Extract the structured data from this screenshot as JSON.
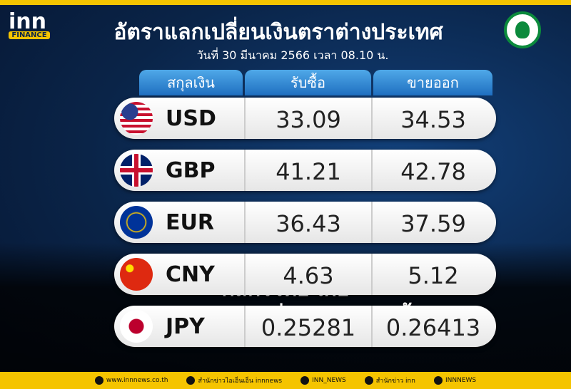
{
  "logo": {
    "brand": "inn",
    "sub": "FINANCE"
  },
  "header": {
    "title": "อัตราแลกเปลี่ยนเงินตราต่างประเทศ",
    "date": "วันที่ 30 มีนาคม 2566 เวลา    08.10 น."
  },
  "table": {
    "columns": [
      "สกุลเงิน",
      "รับซื้อ",
      "ขายออก"
    ],
    "rows": [
      [
        "USD",
        "33.09",
        "34.53"
      ],
      [
        "GBP",
        "41.21",
        "42.78"
      ],
      [
        "EUR",
        "36.43",
        "37.59"
      ],
      [
        "CNY",
        "4.63",
        "5.12"
      ],
      [
        "JPY",
        "0.25281",
        "0.26413"
      ]
    ]
  },
  "caption": [
    "กสิกรไทย เผย",
    "อัตราแลกเปลี่ยนค่าเงินวันนี้"
  ],
  "footer": [
    "www.innnews.co.th",
    "สำนักข่าวไอเอ็นเอ็น innnews",
    "INN_NEWS",
    "สำนักข่าว inn",
    "INNNEWS"
  ]
}
